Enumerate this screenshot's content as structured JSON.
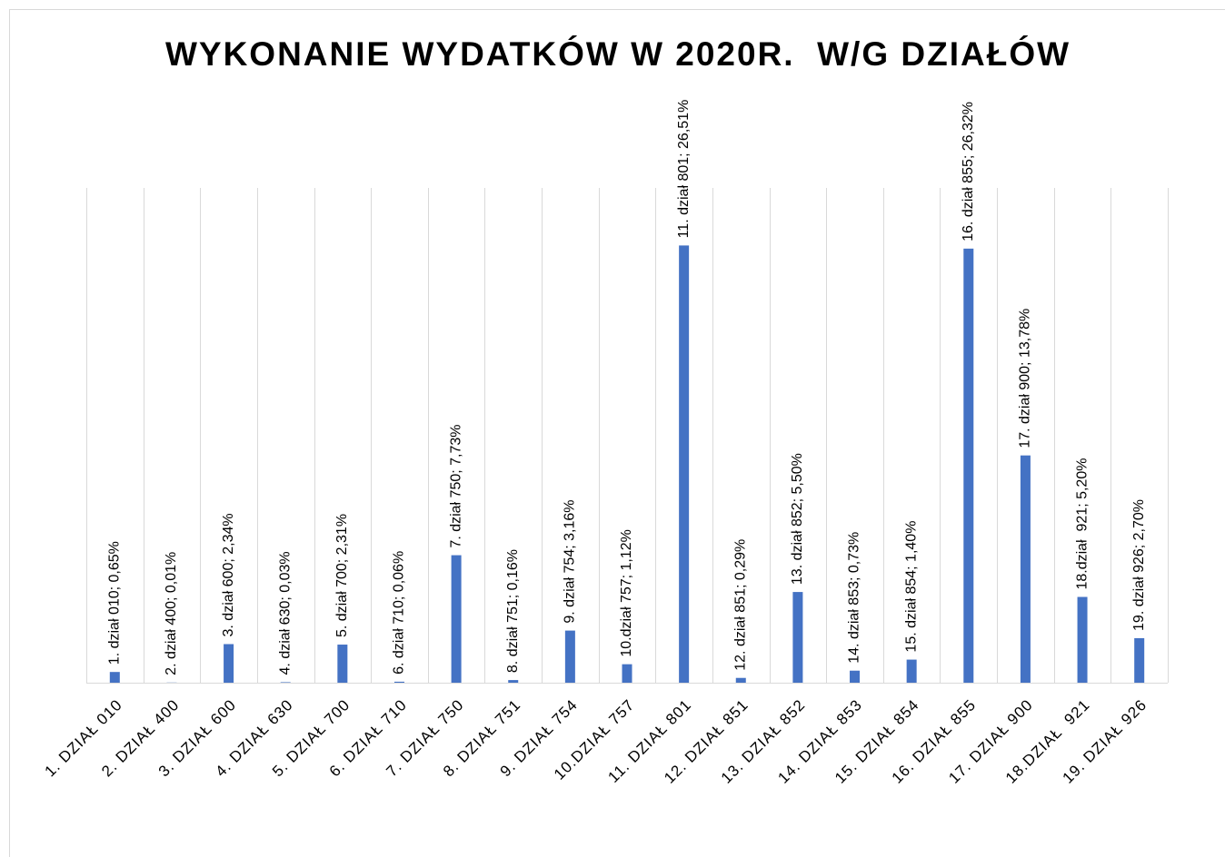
{
  "chart_data": {
    "type": "bar",
    "title": "WYKONANIE WYDATKÓW W 2020R.  W/G DZIAŁÓW",
    "categories": [
      "1. DZIAŁ 010",
      "2. DZIAŁ 400",
      "3. DZIAŁ 600",
      "4. DZIAŁ 630",
      "5. DZIAŁ 700",
      "6. DZIAŁ 710",
      "7. DZIAŁ 750",
      "8. DZIAŁ 751",
      "9. DZIAŁ 754",
      "10.DZIAŁ 757",
      "11. DZIAŁ 801",
      "12. DZIAŁ 851",
      "13. DZIAŁ 852",
      "14. DZIAŁ 853",
      "15. DZIAŁ 854",
      "16. DZIAŁ 855",
      "17. DZIAŁ 900",
      "18.DZIAŁ  921",
      "19. DZIAŁ 926"
    ],
    "values": [
      0.65,
      0.01,
      2.34,
      0.03,
      2.31,
      0.06,
      7.73,
      0.16,
      3.16,
      1.12,
      26.51,
      0.29,
      5.5,
      0.73,
      1.4,
      26.32,
      13.78,
      5.2,
      2.7
    ],
    "value_labels": [
      "1. dział 010; 0,65%",
      "2. dział 400; 0,01%",
      "3. dział 600; 2,34%",
      "4. dział 630; 0,03%",
      "5. dział 700; 2,31%",
      "6. dział 710; 0,06%",
      "7. dział 750; 7,73%",
      "8. dział 751; 0,16%",
      "9. dział 754; 3,16%",
      "10.dział 757; 1,12%",
      "11. dział 801; 26,51%",
      "12. dział 851; 0,29%",
      "13. dział 852; 5,50%",
      "14. dział 853; 0,73%",
      "15. dział 854; 1,40%",
      "16. dział 855; 26,32%",
      "17. dział 900; 13,78%",
      "18.dział  921; 5,20%",
      "19. dział 926; 2,70%"
    ],
    "color": "#4472c4",
    "ylim": [
      0,
      30
    ],
    "grid": true
  }
}
